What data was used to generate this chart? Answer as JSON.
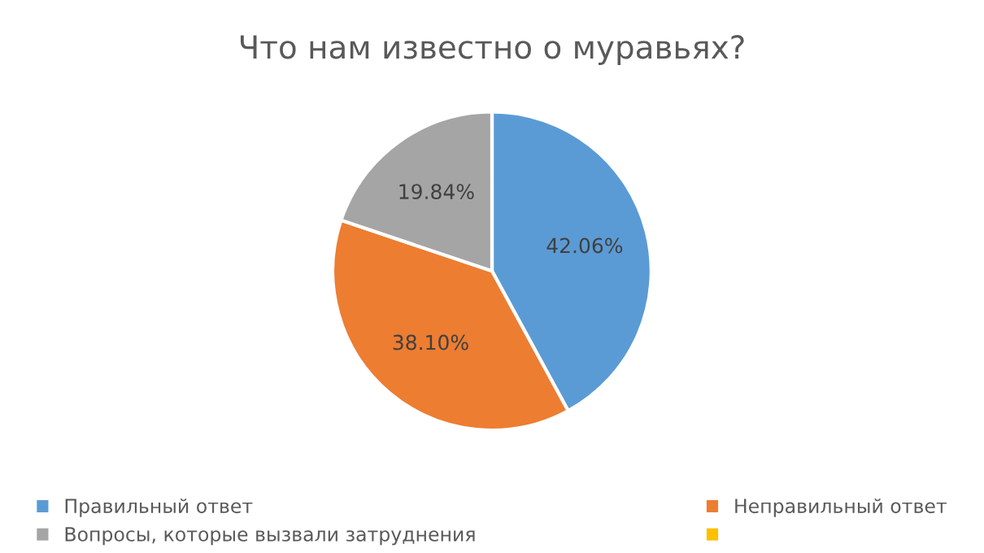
{
  "chart_data": {
    "type": "pie",
    "title": "Что нам известно о муравьях?",
    "categories": [
      "Правильный ответ",
      "Неправильный ответ",
      "Вопросы, которые вызвали затруднения",
      null
    ],
    "values": [
      42.06,
      38.1,
      19.84,
      0
    ],
    "colors": [
      "#5b9bd5",
      "#ed7d31",
      "#a5a5a5",
      "#ffc000"
    ],
    "value_labels": [
      "42.06%",
      "38.10%",
      "19.84%",
      null
    ],
    "legend": "bottom"
  }
}
